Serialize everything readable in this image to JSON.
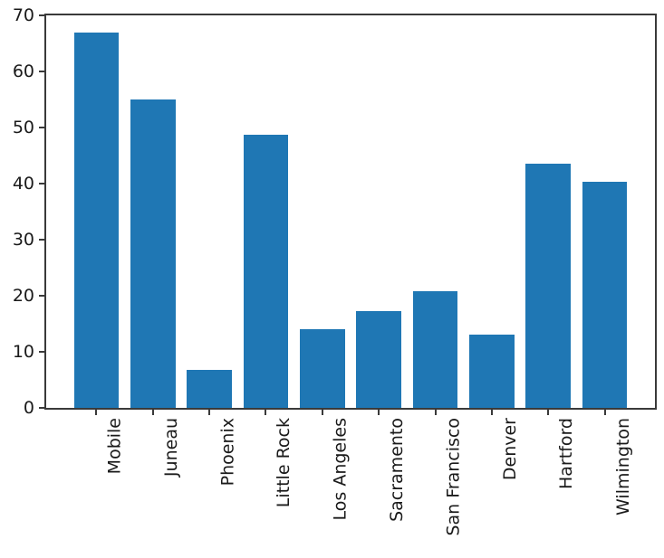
{
  "chart_data": {
    "type": "bar",
    "title": "",
    "xlabel": "",
    "ylabel": "",
    "categories": [
      "Mobile",
      "Juneau",
      "Phoenix",
      "Little Rock",
      "Los Angeles",
      "Sacramento",
      "San Francisco",
      "Denver",
      "Hartford",
      "Wilmington"
    ],
    "values": [
      67,
      55,
      6.8,
      48.7,
      14,
      17.2,
      20.8,
      13,
      43.5,
      40.3
    ],
    "ylim": [
      0,
      70
    ],
    "yticks": [
      0,
      10,
      20,
      30,
      40,
      50,
      60,
      70
    ],
    "grid": false,
    "legend": null,
    "x_tick_rotation_deg": 90,
    "bar_color": "#1f77b4"
  },
  "colors": {
    "bar": "#1f77b4",
    "axis": "#3a3a3a",
    "text": "#1a1a1a",
    "background": "#ffffff"
  }
}
